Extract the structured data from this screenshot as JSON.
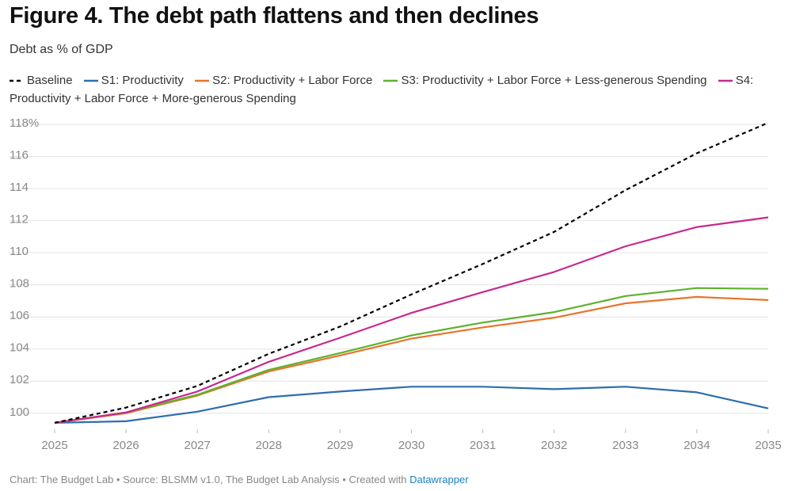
{
  "chart_data": {
    "type": "line",
    "title": "Figure 4. The debt path flattens and then declines",
    "subtitle": "Debt as % of GDP",
    "categories": [
      "2025",
      "2026",
      "2027",
      "2028",
      "2029",
      "2030",
      "2031",
      "2032",
      "2033",
      "2034",
      "2035"
    ],
    "series": [
      {
        "name": "Baseline",
        "color": "#000000",
        "dashed": true,
        "values": [
          99.4,
          100.35,
          101.7,
          103.7,
          105.4,
          107.4,
          109.3,
          111.3,
          113.9,
          116.2,
          118.1
        ]
      },
      {
        "name": "S1: Productivity",
        "color": "#2f6eab",
        "values": [
          99.4,
          99.5,
          100.1,
          101.0,
          101.35,
          101.65,
          101.65,
          101.5,
          101.65,
          101.3,
          100.3
        ]
      },
      {
        "name": "S2: Productivity + Labor Force",
        "color": "#e8742a",
        "values": [
          99.4,
          100.0,
          101.1,
          102.6,
          103.6,
          104.65,
          105.35,
          105.95,
          106.85,
          107.25,
          107.05
        ]
      },
      {
        "name": "S3: Productivity + Labor Force + Less-generous Spending",
        "color": "#5db12f",
        "values": [
          99.4,
          100.05,
          101.15,
          102.7,
          103.75,
          104.85,
          105.65,
          106.3,
          107.3,
          107.8,
          107.75
        ]
      },
      {
        "name": "S4: Productivity + Labor Force + More-generous Spending",
        "color": "#c8288f",
        "values": [
          99.4,
          100.05,
          101.35,
          103.2,
          104.7,
          106.25,
          107.55,
          108.8,
          110.4,
          111.6,
          112.2
        ]
      }
    ],
    "ylim": [
      99.2,
      118
    ],
    "yticks": [
      100,
      102,
      104,
      106,
      108,
      110,
      112,
      114,
      116,
      {
        "value": 118,
        "label": "118%"
      }
    ],
    "grid": true,
    "source": "Chart: The Budget Lab • Source: BLSMM v1.0, The Budget Lab Analysis • Created with",
    "source_link": "Datawrapper"
  }
}
